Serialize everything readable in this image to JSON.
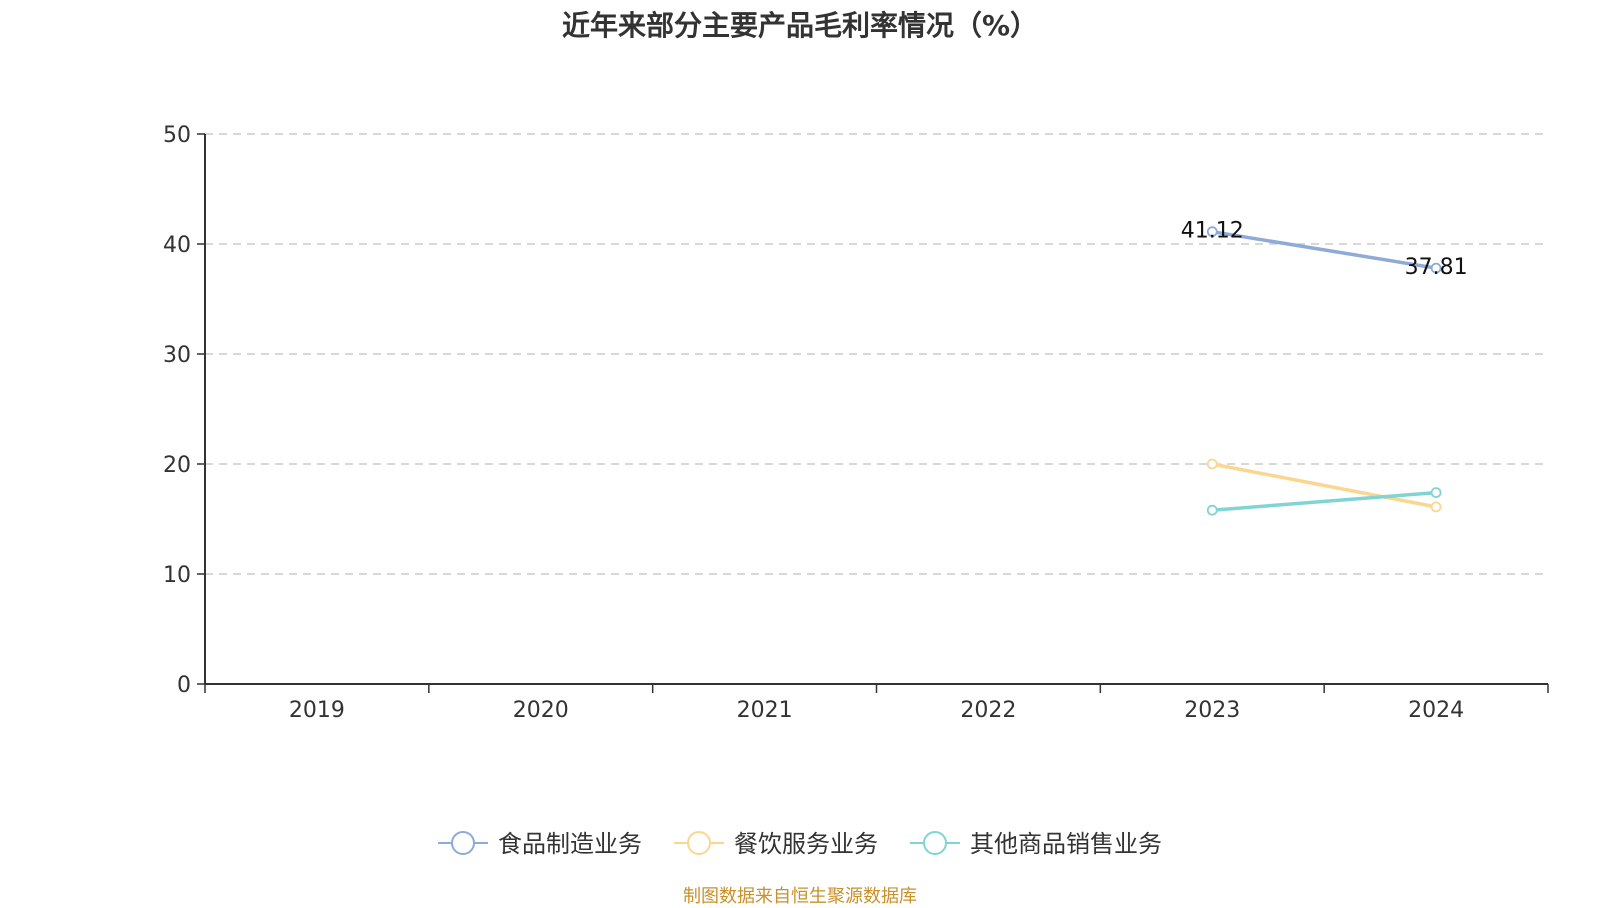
{
  "title": "近年来部分主要产品毛利率情况（%）",
  "source": "制图数据来自恒生聚源数据库",
  "chart_data": {
    "type": "line",
    "title": "近年来部分主要产品毛利率情况（%）",
    "x": [
      "2019",
      "2020",
      "2021",
      "2022",
      "2023",
      "2024"
    ],
    "ylim": [
      0,
      50
    ],
    "yticks": [
      0,
      10,
      20,
      30,
      40,
      50
    ],
    "grid": true,
    "legend_position": "bottom",
    "series": [
      {
        "name": "食品制造业务",
        "color": "#8eaad8",
        "values": [
          null,
          null,
          null,
          null,
          41.12,
          37.81
        ],
        "labels": [
          "",
          "",
          "",
          "",
          "41.12",
          "37.81"
        ]
      },
      {
        "name": "餐饮服务业务",
        "color": "#fad691",
        "values": [
          null,
          null,
          null,
          null,
          20.0,
          16.1
        ],
        "labels": [
          "",
          "",
          "",
          "",
          "",
          ""
        ]
      },
      {
        "name": "其他商品销售业务",
        "color": "#80d4d4",
        "values": [
          null,
          null,
          null,
          null,
          15.8,
          17.4
        ],
        "labels": [
          "",
          "",
          "",
          "",
          "",
          ""
        ]
      }
    ]
  }
}
